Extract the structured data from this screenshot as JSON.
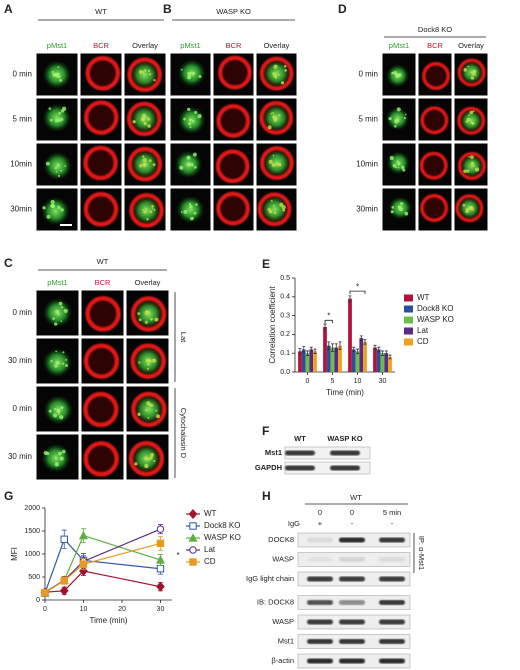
{
  "image_panels": [
    {
      "letter": "A",
      "group": "WT",
      "columns": [
        "pMst1",
        "BCR",
        "Overlay"
      ],
      "rows": [
        "0 min",
        "5 min",
        "10min",
        "30min"
      ]
    },
    {
      "letter": "B",
      "group": "WASP KO",
      "columns": [
        "pMst1",
        "BCR",
        "Overlay"
      ]
    },
    {
      "letter": "D",
      "group": "Dock8 KO",
      "columns": [
        "pMst1",
        "BCR",
        "Overlay"
      ],
      "rows": [
        "0 min",
        "5 min",
        "10min",
        "30min"
      ]
    },
    {
      "letter": "C",
      "group": "WT",
      "columns": [
        "pMst1",
        "BCR",
        "Overlay"
      ],
      "rows": [
        "0 min",
        "30 min",
        "0 min",
        "30 min"
      ],
      "treatments": [
        "Lat",
        "Cytochalasin D"
      ]
    }
  ],
  "blot_F": {
    "letter": "F",
    "lanes": [
      "WT",
      "WASP KO"
    ],
    "rows": [
      "Mst1",
      "GAPDH"
    ]
  },
  "blot_H": {
    "letter": "H",
    "group": "WT",
    "times": [
      "0",
      "0",
      "5 min"
    ],
    "igg_label": "IgG",
    "igg": [
      "+",
      "-",
      "-"
    ],
    "rows": [
      "DOCK8",
      "WASP",
      "IgG light chain",
      "IB: DOCK8",
      "WASP",
      "Mst1",
      "β-actin"
    ],
    "ip_label": "IP: α-Mst1"
  },
  "chart_data": [
    {
      "type": "bar",
      "letter": "E",
      "xlabel": "Time (min)",
      "ylabel": "Correlation coefficient",
      "categories": [
        "0",
        "5",
        "10",
        "30"
      ],
      "ylim": [
        0,
        0.5
      ],
      "yticks": [
        {
          "value": 0,
          "label": "0.0"
        },
        0.1,
        0.2,
        0.3,
        0.4,
        0.5
      ],
      "series": [
        {
          "name": "WT",
          "color": "#b3123c",
          "values": [
            0.11,
            0.24,
            0.39,
            0.13
          ],
          "errors": [
            0.015,
            0.015,
            0.015,
            0.012
          ]
        },
        {
          "name": "Dock8 KO",
          "color": "#2c4e9c",
          "values": [
            0.12,
            0.14,
            0.12,
            0.12
          ],
          "errors": [
            0.015,
            0.02,
            0.012,
            0.012
          ]
        },
        {
          "name": "WASP KO",
          "color": "#6cbf46",
          "values": [
            0.1,
            0.13,
            0.11,
            0.1
          ],
          "errors": [
            0.012,
            0.02,
            0.012,
            0.012
          ]
        },
        {
          "name": "Lat",
          "color": "#5a2a84",
          "values": [
            0.12,
            0.13,
            0.18,
            0.1
          ],
          "errors": [
            0.012,
            0.02,
            0.012,
            0.012
          ]
        },
        {
          "name": "CD",
          "color": "#f0a020",
          "values": [
            0.11,
            0.14,
            0.16,
            0.08
          ],
          "errors": [
            0.012,
            0.02,
            0.012,
            0.01
          ]
        }
      ],
      "annotations": [
        "*",
        "*"
      ]
    },
    {
      "type": "line",
      "letter": "G",
      "xlabel": "Time (min)",
      "ylabel": "MFI",
      "x": [
        0,
        5,
        10,
        30
      ],
      "xlim": [
        0,
        33
      ],
      "xticks": [
        0,
        10,
        20,
        30
      ],
      "ylim": [
        0,
        2000
      ],
      "yticks": [
        0,
        500,
        1000,
        1500,
        2000
      ],
      "series": [
        {
          "name": "WT",
          "color": "#a0122e",
          "marker": "diamond",
          "values": [
            170,
            200,
            630,
            290
          ],
          "errors": [
            30,
            80,
            100,
            90
          ]
        },
        {
          "name": "Dock8 KO",
          "color": "#2c5aa8",
          "marker": "square-open",
          "values": [
            150,
            1320,
            860,
            680
          ],
          "errors": [
            30,
            200,
            150,
            120
          ]
        },
        {
          "name": "WASP KO",
          "color": "#5cb040",
          "marker": "triangle",
          "values": [
            160,
            430,
            1400,
            870
          ],
          "errors": [
            30,
            80,
            150,
            120
          ]
        },
        {
          "name": "Lat",
          "color": "#5a2a84",
          "marker": "circle-open",
          "values": [
            170,
            430,
            840,
            1540
          ],
          "errors": [
            30,
            80,
            120,
            100
          ]
        },
        {
          "name": "CD",
          "color": "#e89a20",
          "marker": "square",
          "values": [
            160,
            420,
            780,
            1230
          ],
          "errors": [
            30,
            80,
            120,
            150
          ]
        }
      ],
      "annotations": [
        "*"
      ]
    }
  ]
}
